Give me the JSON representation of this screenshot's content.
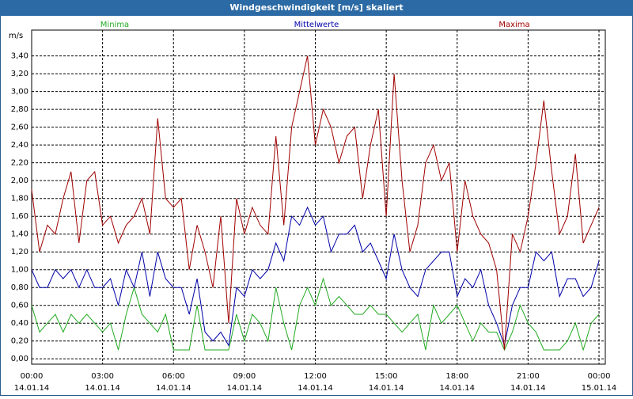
{
  "window_title": "Windgeschwindigkeit [m/s] skaliert",
  "chart_data": {
    "type": "line",
    "y_unit": "m/s",
    "x": [
      0,
      20,
      40,
      60,
      80,
      100,
      120,
      140,
      160,
      180,
      200,
      220,
      240,
      260,
      280,
      300,
      320,
      340,
      360,
      380,
      400,
      420,
      440,
      460,
      480,
      500,
      520,
      540,
      560,
      580,
      600,
      620,
      640,
      660,
      680,
      700,
      720,
      740,
      760,
      780,
      800,
      820,
      840,
      860,
      880,
      900,
      920,
      940,
      960,
      980,
      1000,
      1020,
      1040,
      1060,
      1080,
      1100,
      1120,
      1140,
      1160,
      1180,
      1200,
      1220,
      1240,
      1260,
      1280,
      1300,
      1320,
      1340,
      1360,
      1380,
      1400,
      1420,
      1440
    ],
    "series": [
      {
        "name": "Minima",
        "color": "#22aa22",
        "values": [
          0.6,
          0.3,
          0.4,
          0.5,
          0.3,
          0.5,
          0.4,
          0.5,
          0.4,
          0.3,
          0.4,
          0.1,
          0.5,
          0.8,
          0.5,
          0.4,
          0.3,
          0.5,
          0.1,
          0.1,
          0.1,
          0.6,
          0.1,
          0.1,
          0.1,
          0.1,
          0.5,
          0.2,
          0.5,
          0.4,
          0.2,
          0.8,
          0.4,
          0.1,
          0.6,
          0.8,
          0.6,
          0.9,
          0.6,
          0.7,
          0.6,
          0.5,
          0.5,
          0.6,
          0.5,
          0.5,
          0.4,
          0.3,
          0.4,
          0.5,
          0.1,
          0.6,
          0.4,
          0.5,
          0.6,
          0.4,
          0.2,
          0.4,
          0.3,
          0.3,
          0.1,
          0.3,
          0.6,
          0.4,
          0.3,
          0.1,
          0.1,
          0.1,
          0.2,
          0.4,
          0.1,
          0.4,
          0.5
        ]
      },
      {
        "name": "Mittelwerte",
        "color": "#0000aa",
        "values": [
          1.0,
          0.8,
          0.8,
          1.0,
          0.9,
          1.0,
          0.8,
          1.0,
          0.8,
          0.8,
          0.9,
          0.6,
          1.0,
          0.8,
          1.2,
          0.7,
          1.2,
          0.9,
          0.8,
          0.8,
          0.5,
          0.9,
          0.3,
          0.2,
          0.3,
          0.15,
          0.8,
          0.7,
          1.0,
          0.9,
          1.0,
          1.3,
          1.1,
          1.6,
          1.5,
          1.7,
          1.5,
          1.6,
          1.2,
          1.4,
          1.4,
          1.5,
          1.2,
          1.3,
          1.1,
          0.9,
          1.4,
          1.0,
          0.8,
          0.7,
          1.0,
          1.1,
          1.2,
          1.2,
          0.7,
          0.9,
          0.8,
          1.0,
          0.6,
          0.4,
          0.15,
          0.6,
          0.8,
          0.8,
          1.2,
          1.1,
          1.2,
          0.7,
          0.9,
          0.9,
          0.7,
          0.8,
          1.1
        ]
      },
      {
        "name": "Maxima",
        "color": "#a00000",
        "values": [
          1.9,
          1.2,
          1.5,
          1.4,
          1.8,
          2.1,
          1.3,
          2.0,
          2.1,
          1.5,
          1.6,
          1.3,
          1.5,
          1.6,
          1.8,
          1.4,
          2.7,
          1.8,
          1.7,
          1.8,
          1.0,
          1.5,
          1.2,
          0.8,
          1.6,
          0.4,
          1.8,
          1.4,
          1.7,
          1.5,
          1.4,
          2.5,
          1.5,
          2.6,
          3.0,
          3.4,
          2.4,
          2.8,
          2.6,
          2.2,
          2.5,
          2.6,
          1.8,
          2.4,
          2.8,
          1.6,
          3.2,
          2.0,
          1.2,
          1.5,
          2.2,
          2.4,
          2.0,
          2.2,
          1.2,
          2.0,
          1.6,
          1.4,
          1.3,
          1.0,
          0.1,
          1.4,
          1.2,
          1.6,
          2.2,
          2.9,
          2.1,
          1.4,
          1.6,
          2.3,
          1.3,
          1.5,
          1.7
        ]
      }
    ],
    "xlim": [
      0,
      1456
    ],
    "xticks": [
      {
        "value": 0,
        "label": "00:00"
      },
      {
        "value": 180,
        "label": "03:00"
      },
      {
        "value": 360,
        "label": "06:00"
      },
      {
        "value": 540,
        "label": "09:00"
      },
      {
        "value": 720,
        "label": "12:00"
      },
      {
        "value": 900,
        "label": "15:00"
      },
      {
        "value": 1080,
        "label": "18:00"
      },
      {
        "value": 1260,
        "label": "21:00"
      },
      {
        "value": 1440,
        "label": "00:00"
      }
    ],
    "xtick_dates": [
      "14.01.14",
      "14.01.14",
      "14.01.14",
      "14.01.14",
      "14.01.14",
      "14.01.14",
      "14.01.14",
      "14.01.14",
      "15.01.14"
    ],
    "ylim": [
      -0.06,
      3.69
    ],
    "yticks": [
      {
        "value": 0,
        "label": "0,00"
      },
      {
        "value": 0.2,
        "label": "0,20"
      },
      {
        "value": 0.4,
        "label": "0,40"
      },
      {
        "value": 0.6,
        "label": "0,60"
      },
      {
        "value": 0.8,
        "label": "0,80"
      },
      {
        "value": 1.0,
        "label": "1,00"
      },
      {
        "value": 1.2,
        "label": "1,20"
      },
      {
        "value": 1.4,
        "label": "1,40"
      },
      {
        "value": 1.6,
        "label": "1,60"
      },
      {
        "value": 1.8,
        "label": "1,80"
      },
      {
        "value": 2.0,
        "label": "2,00"
      },
      {
        "value": 2.2,
        "label": "2,20"
      },
      {
        "value": 2.4,
        "label": "2,40"
      },
      {
        "value": 2.6,
        "label": "2,60"
      },
      {
        "value": 2.8,
        "label": "2,80"
      },
      {
        "value": 3.0,
        "label": "3,00"
      },
      {
        "value": 3.2,
        "label": "3,20"
      },
      {
        "value": 3.4,
        "label": "3,40"
      }
    ],
    "grid": true
  }
}
